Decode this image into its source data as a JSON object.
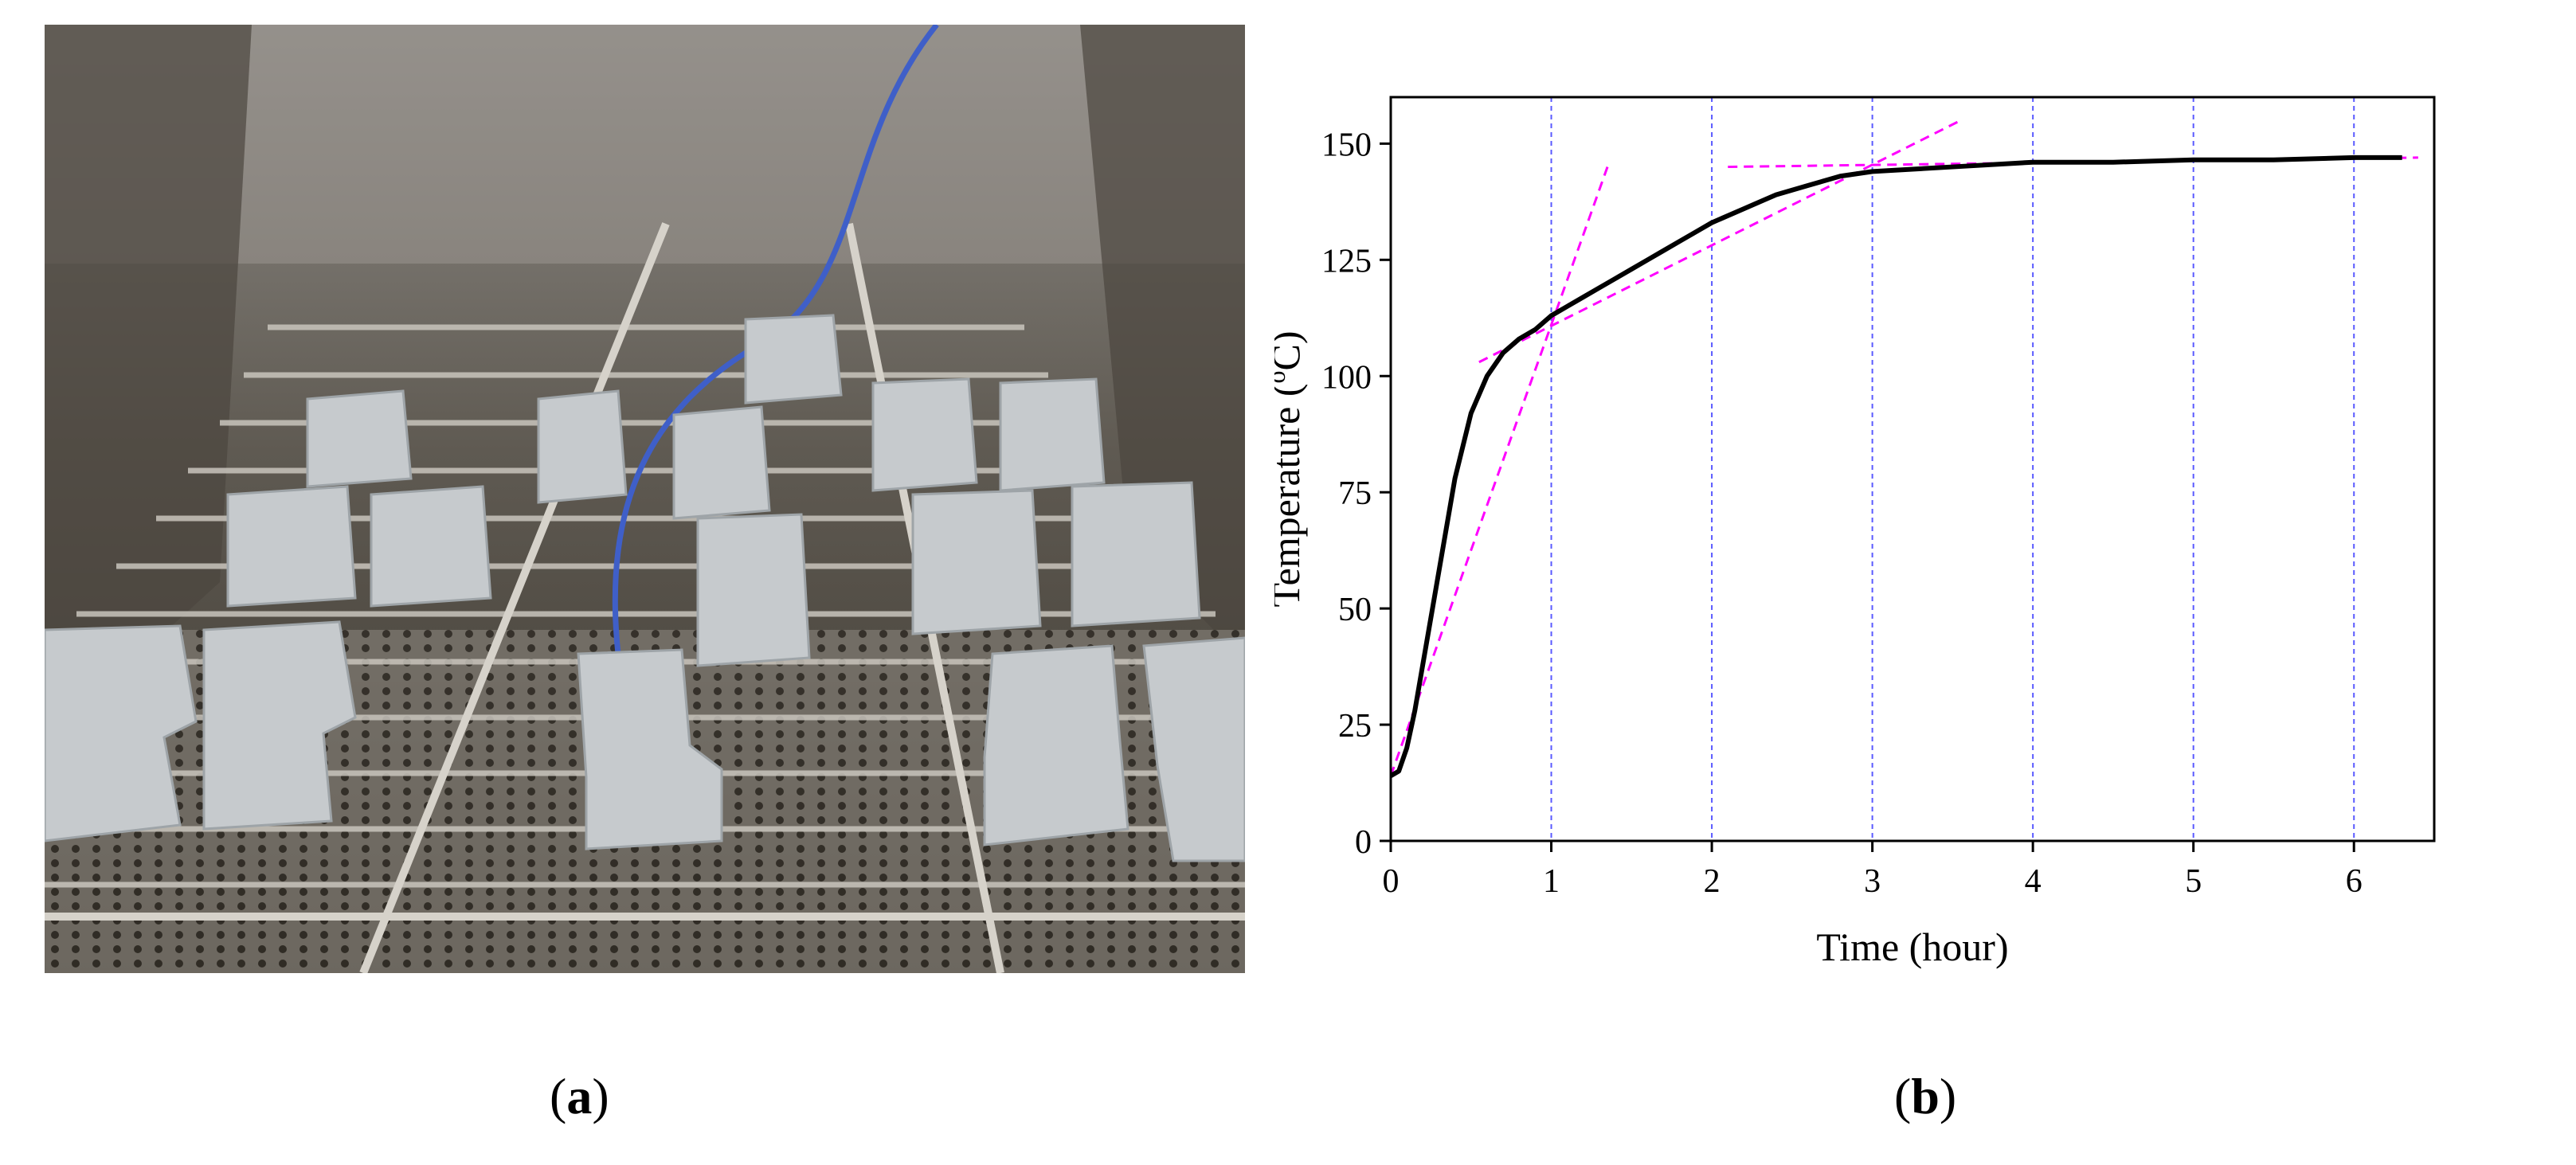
{
  "captions": {
    "a_letter": "a",
    "b_letter": "b",
    "open": "(",
    "close": ")"
  },
  "colors": {
    "curve": "#000000",
    "guide_lines": "#ff00ff",
    "grid": "#5a5aff"
  },
  "chart_data": {
    "type": "line",
    "title": "",
    "xlabel": "Time (hour)",
    "ylabel_main": "Temperature (",
    "ylabel_sup": "o",
    "ylabel_end": "C)",
    "xlim": [
      0,
      6.5
    ],
    "ylim": [
      0,
      160
    ],
    "xticks": [
      0,
      1,
      2,
      3,
      4,
      5,
      6
    ],
    "yticks": [
      0,
      25,
      50,
      75,
      100,
      125,
      150
    ],
    "vertical_grid_x": [
      1,
      2,
      3,
      4,
      5,
      6
    ],
    "series": [
      {
        "x": [
          0,
          0.05,
          0.1,
          0.15,
          0.2,
          0.3,
          0.4,
          0.5,
          0.6,
          0.7,
          0.8,
          0.9,
          1.0,
          1.1,
          1.2,
          1.3,
          1.4,
          1.5,
          1.6,
          1.7,
          1.8,
          1.9,
          2.0,
          2.2,
          2.4,
          2.6,
          2.8,
          3.0,
          3.5,
          4.0,
          4.5,
          5.0,
          5.5,
          6.0,
          6.3
        ],
        "y": [
          14,
          15,
          20,
          28,
          38,
          58,
          78,
          92,
          100,
          105,
          108,
          110,
          113,
          115,
          117,
          119,
          121,
          123,
          125,
          127,
          129,
          131,
          133,
          136,
          139,
          141,
          143,
          144,
          145,
          146,
          146,
          146.5,
          146.5,
          147,
          147
        ]
      }
    ],
    "tangent_lines": [
      {
        "x": [
          0,
          1.35
        ],
        "y": [
          14,
          145
        ]
      },
      {
        "x": [
          0.55,
          3.55
        ],
        "y": [
          103,
          155
        ]
      },
      {
        "x": [
          2.1,
          6.4
        ],
        "y": [
          145,
          147
        ]
      }
    ]
  }
}
